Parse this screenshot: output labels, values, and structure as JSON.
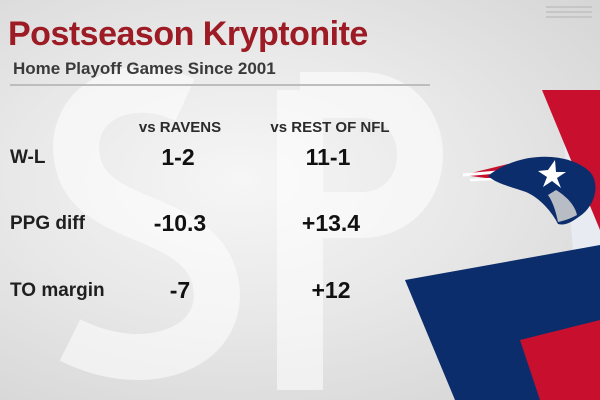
{
  "graphic": {
    "title": "Postseason Kryptonite",
    "subtitle": "Home Playoff Games Since 2001"
  },
  "table": {
    "columns": [
      "vs RAVENS",
      "vs REST OF NFL"
    ],
    "rows": [
      {
        "label": "W-L",
        "values": [
          "1-2",
          "11-1"
        ]
      },
      {
        "label": "PPG diff",
        "values": [
          "-10.3",
          "+13.4"
        ]
      },
      {
        "label": "TO margin",
        "values": [
          "-7",
          "+12"
        ]
      }
    ]
  },
  "colors": {
    "title": "#9c1b24",
    "accent_red": "#c8102e",
    "accent_navy": "#0c2d6b",
    "text": "#111111"
  },
  "icons": {
    "team_logo": "patriots-flying-elvis-logo"
  }
}
